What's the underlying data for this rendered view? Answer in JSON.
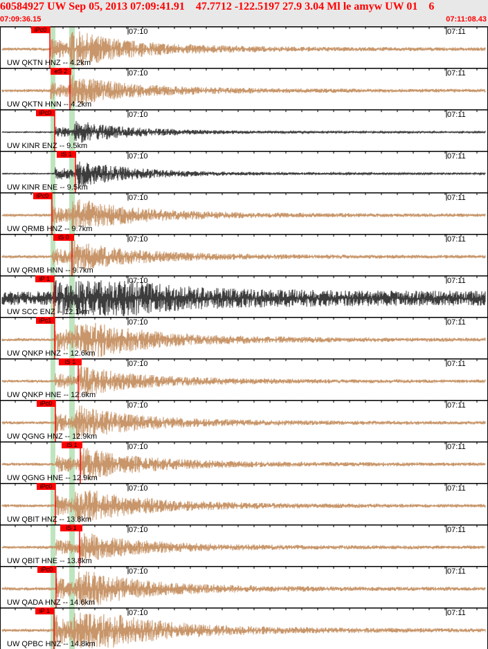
{
  "header": {
    "title": "60584927 UW Sep 05, 2013 07:09:41.91    47.7712 -122.5197 27.9 3.04 Ml le amyw UW 01    6",
    "start_time": "07:09:36.15",
    "end_time": "07:11:08.43"
  },
  "time_ticks": [
    "07:10",
    "07:11"
  ],
  "colors": {
    "header_text": "#ff0000",
    "pick": "#ff0000",
    "trace_accel": "#c8966a",
    "trace_vel": "#3c3c3c",
    "window_band": "#bfe5bf"
  },
  "traces": [
    {
      "label": "UW QKTN HNZ -- 4.2km",
      "pick": "iPc0",
      "type": "accel"
    },
    {
      "label": "UW QKTN HNN -- 4.2km",
      "pick": "eS 2",
      "type": "accel"
    },
    {
      "label": "UW KINR ENZ -- 9.5km",
      "pick": "iPc0",
      "type": "vel"
    },
    {
      "label": "UW KINR ENE -- 9.5km",
      "pick": "iS 1",
      "type": "vel"
    },
    {
      "label": "UW QRMB HNZ -- 9.7km",
      "pick": "iPc0",
      "type": "accel"
    },
    {
      "label": "UW QRMB HNN -- 9.7km",
      "pick": "iS 0",
      "type": "accel"
    },
    {
      "label": "UW SCC ENZ -- 12.1km",
      "pick": "iP 1",
      "type": "vel"
    },
    {
      "label": "UW QNKP HNZ -- 12.6km",
      "pick": "iPc1",
      "type": "accel"
    },
    {
      "label": "UW QNKP HNE -- 12.6km",
      "pick": "iS 1",
      "type": "accel"
    },
    {
      "label": "UW QGNG HNZ -- 12.9km",
      "pick": "iPc0",
      "type": "accel"
    },
    {
      "label": "UW QGNG HNE -- 12.9km",
      "pick": "iS 1",
      "type": "accel"
    },
    {
      "label": "UW QBIT HNZ -- 13.8km",
      "pick": "iPc0",
      "type": "accel"
    },
    {
      "label": "UW QBIT HNE -- 13.8km",
      "pick": "iS 1",
      "type": "accel"
    },
    {
      "label": "UW QADA HNZ -- 14.6km",
      "pick": "iPc0",
      "type": "accel"
    },
    {
      "label": "UW QPBC HNZ -- 14.8km",
      "pick": "iP 1",
      "type": "accel"
    }
  ]
}
